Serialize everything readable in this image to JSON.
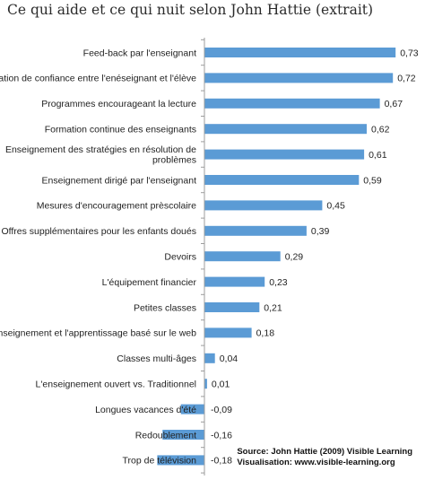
{
  "chart_data": {
    "type": "bar",
    "orientation": "horizontal",
    "title": "Ce qui aide et ce qui nuit selon John Hattie (extrait)",
    "categories": [
      "Feed-back par l'enseignant",
      "Relation de confiance entre l'enéseignant et l'élève",
      "Programmes encourageant la lecture",
      "Formation continue des enseignants",
      "Enseignement des stratégies en résolution de problèmes",
      "Enseignement dirigé par l'enseignant",
      "Mesures d'encouragement prèscolaire",
      "Offres supplémentaires pour les enfants doués",
      "Devoirs",
      "L'équipement financier",
      "Petites classes",
      "L'enseignement et l'apprentissage basé sur le web",
      "Classes multi-âges",
      "L'enseignement ouvert vs. Traditionnel",
      "Longues vacances d'été",
      "Redoublement",
      "Trop de télévision"
    ],
    "category_lines": [
      [
        "Feed-back par l'enseignant"
      ],
      [
        "Relation de confiance entre l'enéseignant et l'élève"
      ],
      [
        "Programmes encourageant la lecture"
      ],
      [
        "Formation continue des enseignants"
      ],
      [
        "Enseignement des stratégies en résolution de",
        "problèmes"
      ],
      [
        "Enseignement dirigé par l'enseignant"
      ],
      [
        "Mesures d'encouragement prèscolaire"
      ],
      [
        "Offres supplémentaires pour les enfants doués"
      ],
      [
        "Devoirs"
      ],
      [
        "L'équipement financier"
      ],
      [
        "Petites classes"
      ],
      [
        "L'enseignement et l'apprentissage basé sur le web"
      ],
      [
        "Classes multi-âges"
      ],
      [
        "L'enseignement ouvert vs. Traditionnel"
      ],
      [
        "Longues vacances d'été"
      ],
      [
        "Redoublement"
      ],
      [
        "Trop de télévision"
      ]
    ],
    "values": [
      0.73,
      0.72,
      0.67,
      0.62,
      0.61,
      0.59,
      0.45,
      0.39,
      0.29,
      0.23,
      0.21,
      0.18,
      0.04,
      0.01,
      -0.09,
      -0.16,
      -0.18
    ],
    "value_labels": [
      "0,73",
      "0,72",
      "0,67",
      "0,62",
      "0,61",
      "0,59",
      "0,45",
      "0,39",
      "0,29",
      "0,23",
      "0,21",
      "0,18",
      "0,04",
      "0,01",
      "-0,09",
      "-0,16",
      "-0,18"
    ],
    "xlim": [
      -0.2,
      0.75
    ],
    "bar_color": "#5b9bd5",
    "axis_color": "#9c9c9c",
    "grid": false,
    "legend": "none",
    "source_lines": [
      "Source: John Hattie (2009) Visible Learning",
      "Visualisation: www.visible-learning.org"
    ]
  }
}
